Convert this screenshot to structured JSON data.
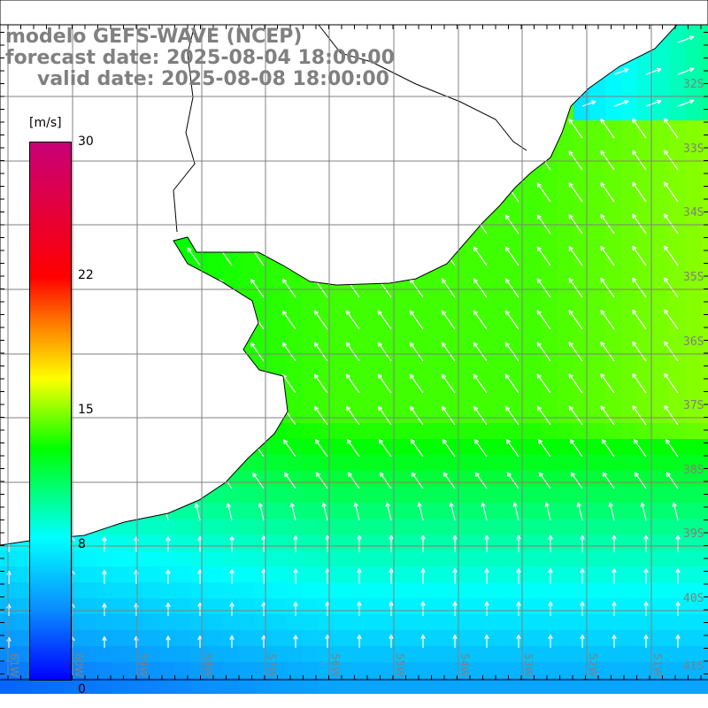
{
  "title": {
    "line1": "modelo GEFS-WAVE (NCEP)",
    "line2": "forecast date: 2025-08-04 18:00:00",
    "line3": "valid date: 2025-08-08 18:00:00"
  },
  "colorbar": {
    "unit": "[m/s]",
    "ticks": [
      "30",
      "22",
      "15",
      "8",
      "0"
    ]
  },
  "axes": {
    "lon_labels": [
      "61W",
      "60W",
      "59W",
      "58W",
      "57W",
      "56W",
      "55W",
      "54W",
      "53W",
      "52W",
      "51W"
    ],
    "lat_labels": [
      "32S",
      "33S",
      "34S",
      "35S",
      "36S",
      "37S",
      "38S",
      "39S",
      "40S",
      "41S"
    ]
  }
}
